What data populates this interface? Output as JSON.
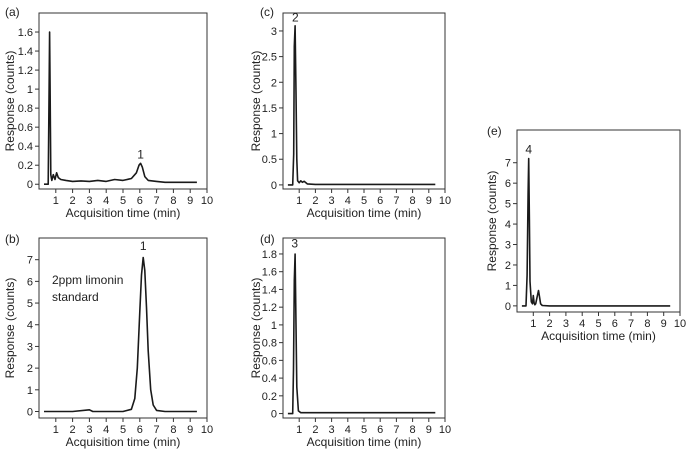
{
  "colors": {
    "trace": "#1a1a1a",
    "axis": "#333333",
    "background": "#ffffff"
  },
  "chart_data": [
    {
      "id": "a",
      "panel_label": "(a)",
      "type": "line",
      "xlabel": "Acquisition time (min)",
      "ylabel": "Response (counts)",
      "xlim": [
        0,
        10
      ],
      "ylim": [
        -0.05,
        1.8
      ],
      "x_ticks": [
        "1",
        "2",
        "3",
        "4",
        "5",
        "6",
        "7",
        "8",
        "9",
        "10"
      ],
      "y_ticks": [
        "0",
        "0.2",
        "0.4",
        "0.6",
        "0.8",
        "1",
        "1.2",
        "1.4",
        "1.6"
      ],
      "y_tick_values": [
        0,
        0.2,
        0.4,
        0.6,
        0.8,
        1,
        1.2,
        1.4,
        1.6
      ],
      "annotation": "",
      "peak_labels": [
        {
          "text": "1",
          "x": 6.05,
          "y": 0.25
        }
      ],
      "series": [
        {
          "x": [
            0.3,
            0.55,
            0.6,
            0.63,
            0.66,
            0.7,
            0.76,
            0.85,
            0.95,
            1.05,
            1.15,
            1.3,
            1.6,
            2,
            2.5,
            3,
            3.5,
            4,
            4.5,
            5,
            5.5,
            5.8,
            5.95,
            6.05,
            6.15,
            6.3,
            6.5,
            7,
            7.5,
            8,
            8.5,
            9,
            9.4
          ],
          "y": [
            0,
            0,
            1.0,
            1.6,
            1.0,
            0.1,
            0.04,
            0.1,
            0.05,
            0.12,
            0.07,
            0.05,
            0.04,
            0.03,
            0.035,
            0.03,
            0.04,
            0.03,
            0.05,
            0.04,
            0.06,
            0.12,
            0.2,
            0.22,
            0.18,
            0.08,
            0.04,
            0.03,
            0.02,
            0.02,
            0.02,
            0.02,
            0.02
          ]
        }
      ]
    },
    {
      "id": "b",
      "panel_label": "(b)",
      "type": "line",
      "xlabel": "Acquisition time (min)",
      "ylabel": "Response (counts)",
      "xlim": [
        0,
        10
      ],
      "ylim": [
        -0.3,
        8.0
      ],
      "x_ticks": [
        "1",
        "2",
        "3",
        "4",
        "5",
        "6",
        "7",
        "8",
        "9",
        "10"
      ],
      "y_ticks": [
        "0",
        "1",
        "2",
        "3",
        "4",
        "5",
        "6",
        "7"
      ],
      "y_tick_values": [
        0,
        1,
        2,
        3,
        4,
        5,
        6,
        7
      ],
      "annotation": "2ppm limonin\nstandard",
      "peak_labels": [
        {
          "text": "1",
          "x": 6.2,
          "y": 7.35
        }
      ],
      "series": [
        {
          "x": [
            0.3,
            1,
            2,
            3,
            3.2,
            4,
            5,
            5.5,
            5.7,
            5.85,
            6.0,
            6.1,
            6.2,
            6.3,
            6.4,
            6.5,
            6.65,
            6.8,
            7.0,
            7.5,
            8,
            9,
            9.4
          ],
          "y": [
            0,
            0,
            0,
            0.08,
            0,
            0,
            0,
            0.1,
            0.6,
            2.0,
            4.6,
            6.3,
            7.1,
            6.5,
            4.8,
            2.8,
            1.0,
            0.3,
            0.05,
            0,
            0,
            0,
            0
          ]
        }
      ]
    },
    {
      "id": "c",
      "panel_label": "(c)",
      "type": "line",
      "xlabel": "Acquisition time (min)",
      "ylabel": "Response (counts)",
      "xlim": [
        0,
        10
      ],
      "ylim": [
        -0.08,
        3.35
      ],
      "x_ticks": [
        "1",
        "2",
        "3",
        "4",
        "5",
        "6",
        "7",
        "8",
        "9",
        "10"
      ],
      "y_ticks": [
        "0",
        "0.5",
        "1",
        "1.5",
        "2",
        "2.5",
        "3"
      ],
      "y_tick_values": [
        0,
        0.5,
        1,
        1.5,
        2,
        2.5,
        3
      ],
      "annotation": "",
      "peak_labels": [
        {
          "text": "2",
          "x": 0.76,
          "y": 3.15
        }
      ],
      "series": [
        {
          "x": [
            0.3,
            0.6,
            0.66,
            0.7,
            0.75,
            0.8,
            0.85,
            0.9,
            1.0,
            1.1,
            1.2,
            1.3,
            1.5,
            2,
            3,
            5,
            7,
            9,
            9.4
          ],
          "y": [
            0,
            0,
            0.6,
            2.7,
            3.1,
            1.8,
            0.5,
            0.08,
            0.04,
            0.08,
            0.05,
            0.07,
            0.02,
            0.01,
            0.01,
            0.01,
            0.01,
            0.01,
            0.01
          ]
        }
      ]
    },
    {
      "id": "d",
      "panel_label": "(d)",
      "type": "line",
      "xlabel": "Acquisition time (min)",
      "ylabel": "Response (counts)",
      "xlim": [
        0,
        10
      ],
      "ylim": [
        -0.05,
        1.98
      ],
      "x_ticks": [
        "1",
        "2",
        "3",
        "4",
        "5",
        "6",
        "7",
        "8",
        "9",
        "10"
      ],
      "y_ticks": [
        "0",
        "0.2",
        "0.4",
        "0.6",
        "0.8",
        "1",
        "1.2",
        "1.4",
        "1.6",
        "1.8"
      ],
      "y_tick_values": [
        0,
        0.2,
        0.4,
        0.6,
        0.8,
        1,
        1.2,
        1.4,
        1.6,
        1.8
      ],
      "annotation": "",
      "peak_labels": [
        {
          "text": "3",
          "x": 0.72,
          "y": 1.85
        }
      ],
      "series": [
        {
          "x": [
            0.3,
            0.6,
            0.65,
            0.7,
            0.75,
            0.8,
            0.85,
            0.95,
            1.1,
            2,
            4,
            6,
            8,
            9.4
          ],
          "y": [
            0,
            0,
            0.5,
            1.5,
            1.8,
            1.0,
            0.3,
            0.03,
            0.01,
            0.01,
            0.01,
            0.01,
            0.01,
            0.01
          ]
        }
      ]
    },
    {
      "id": "e",
      "panel_label": "(e)",
      "type": "line",
      "xlabel": "Acquisition time (min)",
      "ylabel": "Response (counts)",
      "xlim": [
        0,
        10
      ],
      "ylim": [
        -0.3,
        8.6
      ],
      "x_ticks": [
        "1",
        "2",
        "3",
        "4",
        "5",
        "6",
        "7",
        "8",
        "9",
        "10"
      ],
      "y_ticks": [
        "0",
        "1",
        "2",
        "3",
        "4",
        "5",
        "6",
        "7"
      ],
      "y_tick_values": [
        0,
        1,
        2,
        3,
        4,
        5,
        6,
        7
      ],
      "annotation": "",
      "peak_labels": [
        {
          "text": "4",
          "x": 0.72,
          "y": 7.35
        }
      ],
      "series": [
        {
          "x": [
            0.3,
            0.55,
            0.62,
            0.68,
            0.72,
            0.76,
            0.8,
            0.88,
            0.95,
            1.0,
            1.05,
            1.1,
            1.15,
            1.25,
            1.32,
            1.38,
            1.45,
            1.55,
            2,
            4,
            6,
            8,
            9.4
          ],
          "y": [
            0,
            0,
            1.5,
            5.5,
            7.2,
            4.2,
            1.2,
            0.2,
            0.1,
            0.5,
            0.15,
            0.05,
            0.1,
            0.5,
            0.75,
            0.45,
            0.1,
            0.02,
            0,
            0,
            0,
            0,
            0
          ]
        }
      ]
    }
  ]
}
